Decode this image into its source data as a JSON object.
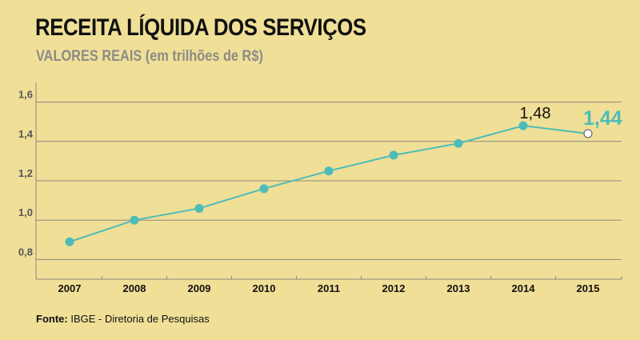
{
  "title": "RECEITA LÍQUIDA DOS SERVIÇOS",
  "subtitle": "VALORES REAIS (em trilhões de R$)",
  "source": {
    "label": "Fonte:",
    "text": " IBGE - Diretoria de Pesquisas"
  },
  "colors": {
    "background": "#f0df97",
    "line": "#4dbcb8",
    "grid": "#8a8a84",
    "highlight": "#4dbcb8"
  },
  "chart_data": {
    "type": "line",
    "categories": [
      "2007",
      "2008",
      "2009",
      "2010",
      "2011",
      "2012",
      "2013",
      "2014",
      "2015"
    ],
    "values": [
      0.89,
      1.0,
      1.06,
      1.16,
      1.25,
      1.33,
      1.39,
      1.48,
      1.44
    ],
    "ylim": [
      0.7,
      1.7
    ],
    "yticks": [
      0.8,
      1.0,
      1.2,
      1.4,
      1.6
    ],
    "ytick_labels": [
      "0,8",
      "1,0",
      "1,2",
      "1,4",
      "1,6"
    ],
    "annotations": [
      {
        "category": "2014",
        "text": "1,48",
        "color": "#111111"
      },
      {
        "category": "2015",
        "text": "1,44",
        "color": "#4dbcb8"
      }
    ],
    "hollow_last_point": true,
    "grid": true,
    "title": "RECEITA LÍQUIDA DOS SERVIÇOS",
    "xlabel": "",
    "ylabel": ""
  }
}
